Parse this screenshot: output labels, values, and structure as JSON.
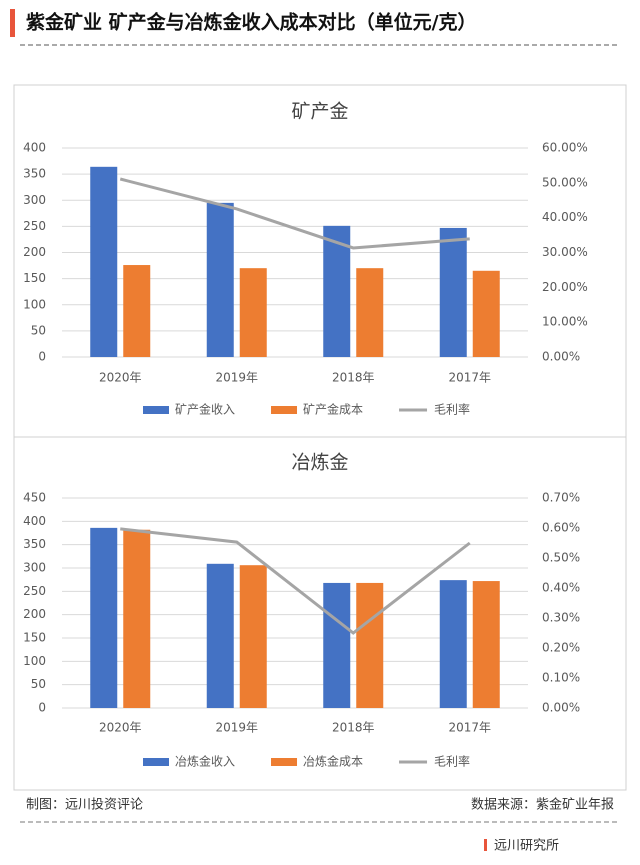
{
  "header": {
    "title": "紫金矿业 矿产金与冶炼金收入成本对比（单位元/克）"
  },
  "footer": {
    "left": "制图：远川投资评论",
    "right": "数据来源：紫金矿业年报",
    "logo": "远川研究所"
  },
  "chart_data": [
    {
      "type": "bar",
      "title": "矿产金",
      "categories": [
        "2020年",
        "2019年",
        "2018年",
        "2017年"
      ],
      "series": [
        {
          "name": "矿产金收入",
          "color": "#4472c4",
          "values": [
            364,
            295,
            251,
            247
          ]
        },
        {
          "name": "矿产金成本",
          "color": "#ed7d31",
          "values": [
            176,
            170,
            170,
            165
          ]
        },
        {
          "name": "毛利率",
          "color": "#a5a5a5",
          "type": "line",
          "axis": "y2",
          "values": [
            51.1,
            42.5,
            31.3,
            33.9
          ]
        }
      ],
      "ylim": [
        0,
        400
      ],
      "yticks": [
        0,
        50,
        100,
        150,
        200,
        250,
        300,
        350,
        400
      ],
      "y2lim": [
        0,
        60
      ],
      "y2ticks": [
        {
          "value": 0,
          "label": "0.00%"
        },
        {
          "value": 10,
          "label": "10.00%"
        },
        {
          "value": 20,
          "label": "20.00%"
        },
        {
          "value": 30,
          "label": "30.00%"
        },
        {
          "value": 40,
          "label": "40.00%"
        },
        {
          "value": 50,
          "label": "50.00%"
        },
        {
          "value": 60,
          "label": "60.00%"
        }
      ],
      "grid": true,
      "legend": "bottom"
    },
    {
      "type": "bar",
      "title": "冶炼金",
      "categories": [
        "2020年",
        "2019年",
        "2018年",
        "2017年"
      ],
      "series": [
        {
          "name": "冶炼金收入",
          "color": "#4472c4",
          "values": [
            386,
            309,
            268,
            274
          ]
        },
        {
          "name": "冶炼金成本",
          "color": "#ed7d31",
          "values": [
            382,
            306,
            268,
            272
          ]
        },
        {
          "name": "毛利率",
          "color": "#a5a5a5",
          "type": "line",
          "axis": "y2",
          "values": [
            0.597,
            0.553,
            0.25,
            0.55
          ]
        }
      ],
      "ylim": [
        0,
        450
      ],
      "yticks": [
        0,
        50,
        100,
        150,
        200,
        250,
        300,
        350,
        400,
        450
      ],
      "y2lim": [
        0,
        0.7
      ],
      "y2ticks": [
        {
          "value": 0,
          "label": "0.00%"
        },
        {
          "value": 0.1,
          "label": "0.10%"
        },
        {
          "value": 0.2,
          "label": "0.20%"
        },
        {
          "value": 0.3,
          "label": "0.30%"
        },
        {
          "value": 0.4,
          "label": "0.40%"
        },
        {
          "value": 0.5,
          "label": "0.50%"
        },
        {
          "value": 0.6,
          "label": "0.60%"
        },
        {
          "value": 0.7,
          "label": "0.70%"
        }
      ],
      "grid": true,
      "legend": "bottom"
    }
  ]
}
